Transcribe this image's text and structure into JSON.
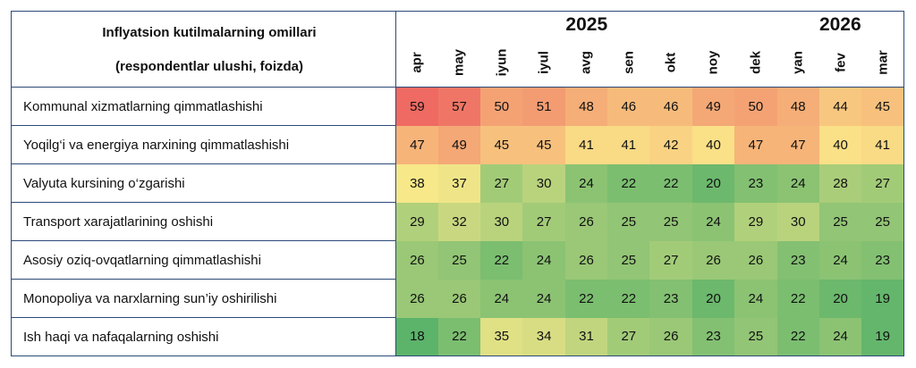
{
  "header": {
    "title": "Inflyatsion kutilmalarning omillari",
    "subtitle": "(respondentlar ulushi, foizda)"
  },
  "years": [
    {
      "label": "2025",
      "span": 9
    },
    {
      "label": "2026",
      "span": 3
    }
  ],
  "chart_data": {
    "type": "heatmap",
    "x": [
      "apr",
      "may",
      "iyun",
      "iyul",
      "avg",
      "sen",
      "okt",
      "noy",
      "dek",
      "yan",
      "fev",
      "mar"
    ],
    "rows": [
      {
        "label": "Kommunal xizmatlarning qimmatlashishi",
        "values": [
          59,
          57,
          50,
          51,
          48,
          46,
          46,
          49,
          50,
          48,
          44,
          45
        ]
      },
      {
        "label": "Yoqilg‘i va energiya narxining qimmatlashishi",
        "values": [
          47,
          49,
          45,
          45,
          41,
          41,
          42,
          40,
          47,
          47,
          40,
          41
        ]
      },
      {
        "label": "Valyuta kursining o‘zgarishi",
        "values": [
          38,
          37,
          27,
          30,
          24,
          22,
          22,
          20,
          23,
          24,
          28,
          27
        ]
      },
      {
        "label": "Transport xarajatlarining oshishi",
        "values": [
          29,
          32,
          30,
          27,
          26,
          25,
          25,
          24,
          29,
          30,
          25,
          25
        ]
      },
      {
        "label": "Asosiy oziq-ovqatlarning qimmatlashishi",
        "values": [
          26,
          25,
          22,
          24,
          26,
          25,
          27,
          26,
          26,
          23,
          24,
          23
        ]
      },
      {
        "label": "Monopoliya va narxlarning sun’iy oshirilishi",
        "values": [
          26,
          26,
          24,
          24,
          22,
          22,
          23,
          20,
          24,
          22,
          20,
          19
        ]
      },
      {
        "label": "Ish haqi va nafaqalarning oshishi",
        "values": [
          18,
          22,
          35,
          34,
          31,
          27,
          26,
          23,
          25,
          22,
          24,
          19
        ]
      }
    ],
    "color_scale": {
      "low": "#5cb36a",
      "mid": "#fbe98a",
      "high": "#ee6a62"
    }
  }
}
